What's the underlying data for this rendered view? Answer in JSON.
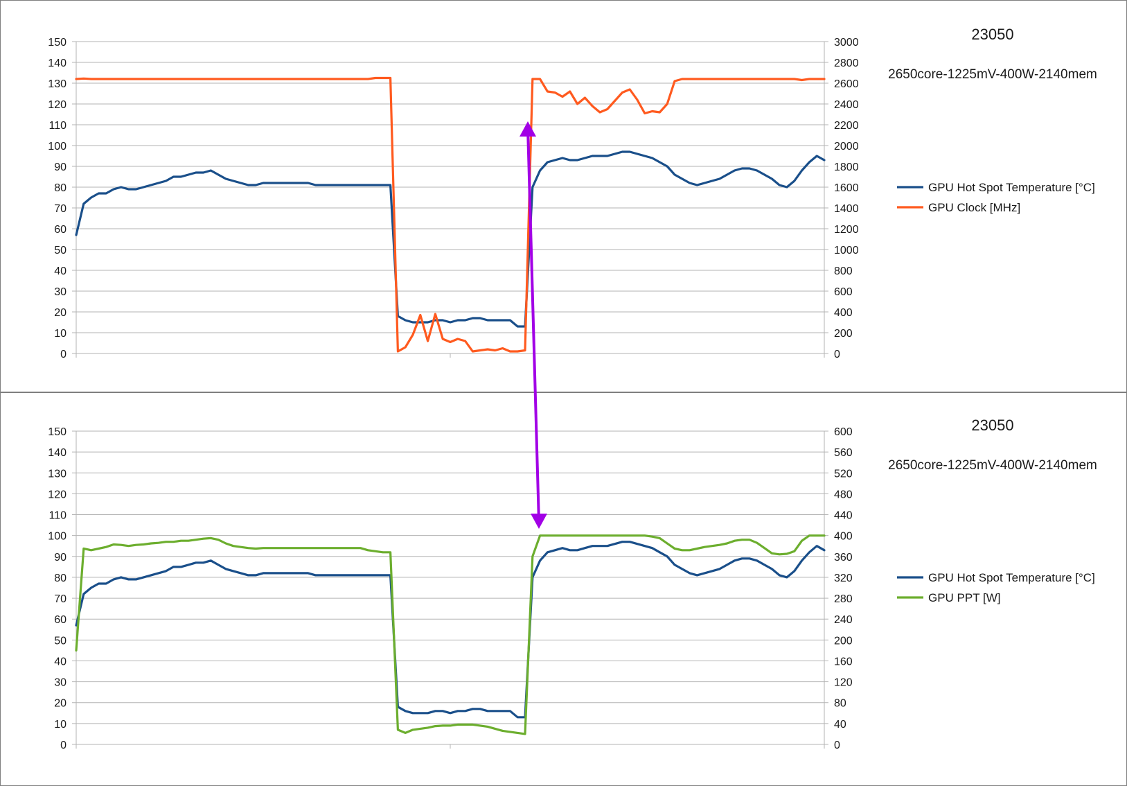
{
  "colors": {
    "temperature": "#1a4f8a",
    "clock": "#ff5a1f",
    "ppt": "#6cae2e",
    "annotation": "#a200e6",
    "grid": "#b3b3b3",
    "axis": "#b3b3b3",
    "text": "#1a1a1a"
  },
  "chart_data": [
    {
      "type": "line",
      "title": "23050",
      "subtitle": "2650core-1225mV-400W-2140mem",
      "legend_position": "right",
      "grid": true,
      "x": [
        0,
        5,
        10,
        15,
        20,
        25,
        30,
        35,
        40,
        45,
        50,
        55,
        60,
        65,
        70,
        75,
        80,
        85,
        90,
        95,
        100,
        105,
        110,
        115,
        120,
        125,
        130,
        135,
        140,
        145,
        150,
        155,
        160,
        165,
        170,
        175,
        180,
        185,
        190,
        195,
        200,
        205,
        210,
        215,
        220,
        225,
        230,
        235,
        240,
        245,
        250,
        255,
        260,
        265,
        270,
        275,
        280,
        285,
        290,
        295,
        300,
        305,
        310,
        315,
        320,
        325,
        330,
        335,
        340,
        345,
        350,
        355,
        360,
        365,
        370,
        375,
        380,
        385,
        390,
        395,
        400,
        405,
        410,
        415,
        420,
        425,
        430,
        435,
        440,
        445,
        450,
        455,
        460,
        465,
        470,
        475,
        480,
        485,
        490,
        495,
        500
      ],
      "xlim": [
        0,
        500
      ],
      "left_axis": {
        "ylim": [
          0,
          150
        ],
        "ticks": [
          0,
          10,
          20,
          30,
          40,
          50,
          60,
          70,
          80,
          90,
          100,
          110,
          120,
          130,
          140,
          150
        ]
      },
      "right_axis": {
        "ylim": [
          0,
          3000
        ],
        "ticks": [
          0,
          200,
          400,
          600,
          800,
          1000,
          1200,
          1400,
          1600,
          1800,
          2000,
          2200,
          2400,
          2600,
          2800,
          3000
        ]
      },
      "series": [
        {
          "name": "GPU Hot Spot Temperature [°C]",
          "axis": "left",
          "color": "#1a4f8a",
          "values": [
            57,
            72,
            75,
            77,
            77,
            79,
            80,
            79,
            79,
            80,
            81,
            82,
            83,
            85,
            85,
            86,
            87,
            87,
            88,
            86,
            84,
            83,
            82,
            81,
            81,
            82,
            82,
            82,
            82,
            82,
            82,
            82,
            81,
            81,
            81,
            81,
            81,
            81,
            81,
            81,
            81,
            81,
            81,
            18,
            16,
            15,
            15,
            15,
            16,
            16,
            15,
            16,
            16,
            17,
            17,
            16,
            16,
            16,
            16,
            13,
            13,
            80,
            88,
            92,
            93,
            94,
            93,
            93,
            94,
            95,
            95,
            95,
            96,
            97,
            97,
            96,
            95,
            94,
            92,
            90,
            86,
            84,
            82,
            81,
            82,
            83,
            84,
            86,
            88,
            89,
            89,
            88,
            86,
            84,
            81,
            80,
            83,
            88,
            92,
            95,
            93
          ]
        },
        {
          "name": "GPU Clock [MHz]",
          "axis": "right",
          "color": "#ff5a1f",
          "values": [
            2640,
            2645,
            2640,
            2640,
            2640,
            2640,
            2640,
            2640,
            2640,
            2640,
            2640,
            2640,
            2640,
            2640,
            2640,
            2640,
            2640,
            2640,
            2640,
            2640,
            2640,
            2640,
            2640,
            2640,
            2640,
            2640,
            2640,
            2640,
            2640,
            2640,
            2640,
            2640,
            2640,
            2640,
            2640,
            2640,
            2640,
            2640,
            2640,
            2640,
            2650,
            2650,
            2650,
            20,
            60,
            180,
            370,
            120,
            380,
            140,
            110,
            140,
            120,
            20,
            30,
            40,
            30,
            50,
            20,
            20,
            30,
            2640,
            2640,
            2520,
            2510,
            2470,
            2520,
            2400,
            2460,
            2380,
            2320,
            2350,
            2430,
            2510,
            2540,
            2440,
            2310,
            2330,
            2320,
            2400,
            2620,
            2640,
            2640,
            2640,
            2640,
            2640,
            2640,
            2640,
            2640,
            2640,
            2640,
            2640,
            2640,
            2640,
            2640,
            2640,
            2640,
            2630,
            2640,
            2640,
            2640
          ]
        }
      ]
    },
    {
      "type": "line",
      "title": "23050",
      "subtitle": "2650core-1225mV-400W-2140mem",
      "legend_position": "right",
      "grid": true,
      "x": [
        0,
        5,
        10,
        15,
        20,
        25,
        30,
        35,
        40,
        45,
        50,
        55,
        60,
        65,
        70,
        75,
        80,
        85,
        90,
        95,
        100,
        105,
        110,
        115,
        120,
        125,
        130,
        135,
        140,
        145,
        150,
        155,
        160,
        165,
        170,
        175,
        180,
        185,
        190,
        195,
        200,
        205,
        210,
        215,
        220,
        225,
        230,
        235,
        240,
        245,
        250,
        255,
        260,
        265,
        270,
        275,
        280,
        285,
        290,
        295,
        300,
        305,
        310,
        315,
        320,
        325,
        330,
        335,
        340,
        345,
        350,
        355,
        360,
        365,
        370,
        375,
        380,
        385,
        390,
        395,
        400,
        405,
        410,
        415,
        420,
        425,
        430,
        435,
        440,
        445,
        450,
        455,
        460,
        465,
        470,
        475,
        480,
        485,
        490,
        495,
        500
      ],
      "xlim": [
        0,
        500
      ],
      "left_axis": {
        "ylim": [
          0,
          150
        ],
        "ticks": [
          0,
          10,
          20,
          30,
          40,
          50,
          60,
          70,
          80,
          90,
          100,
          110,
          120,
          130,
          140,
          150
        ]
      },
      "right_axis": {
        "ylim": [
          0,
          600
        ],
        "ticks": [
          0,
          40,
          80,
          120,
          160,
          200,
          240,
          280,
          320,
          360,
          400,
          440,
          480,
          520,
          560,
          600
        ]
      },
      "series": [
        {
          "name": "GPU Hot Spot Temperature [°C]",
          "axis": "left",
          "color": "#1a4f8a",
          "values": [
            57,
            72,
            75,
            77,
            77,
            79,
            80,
            79,
            79,
            80,
            81,
            82,
            83,
            85,
            85,
            86,
            87,
            87,
            88,
            86,
            84,
            83,
            82,
            81,
            81,
            82,
            82,
            82,
            82,
            82,
            82,
            82,
            81,
            81,
            81,
            81,
            81,
            81,
            81,
            81,
            81,
            81,
            81,
            18,
            16,
            15,
            15,
            15,
            16,
            16,
            15,
            16,
            16,
            17,
            17,
            16,
            16,
            16,
            16,
            13,
            13,
            80,
            88,
            92,
            93,
            94,
            93,
            93,
            94,
            95,
            95,
            95,
            96,
            97,
            97,
            96,
            95,
            94,
            92,
            90,
            86,
            84,
            82,
            81,
            82,
            83,
            84,
            86,
            88,
            89,
            89,
            88,
            86,
            84,
            81,
            80,
            83,
            88,
            92,
            95,
            93
          ]
        },
        {
          "name": "GPU PPT [W]",
          "axis": "right",
          "color": "#6cae2e",
          "values": [
            180,
            375,
            372,
            375,
            378,
            383,
            382,
            380,
            382,
            383,
            385,
            386,
            388,
            388,
            390,
            390,
            392,
            394,
            395,
            392,
            385,
            380,
            378,
            376,
            375,
            376,
            376,
            376,
            376,
            376,
            376,
            376,
            376,
            376,
            376,
            376,
            376,
            376,
            376,
            372,
            370,
            368,
            368,
            28,
            22,
            28,
            30,
            32,
            35,
            36,
            36,
            38,
            38,
            38,
            36,
            34,
            30,
            26,
            24,
            22,
            20,
            360,
            400,
            400,
            400,
            400,
            400,
            400,
            400,
            400,
            400,
            400,
            400,
            400,
            400,
            400,
            400,
            398,
            395,
            385,
            375,
            372,
            372,
            375,
            378,
            380,
            382,
            385,
            390,
            392,
            392,
            386,
            376,
            366,
            364,
            365,
            370,
            390,
            400,
            400,
            400
          ]
        }
      ]
    }
  ]
}
